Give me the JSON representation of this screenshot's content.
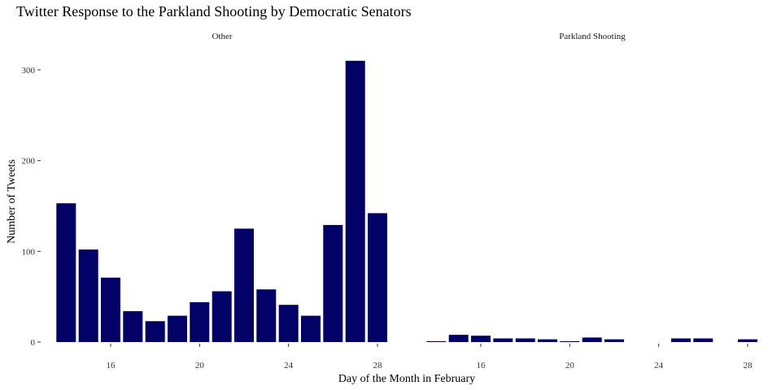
{
  "chart_data": {
    "type": "bar",
    "title": "Twitter Response to the Parkland Shooting by Democratic Senators",
    "xlabel": "Day of the Month in February",
    "ylabel": "Number of Tweets",
    "ylim": [
      0,
      330
    ],
    "yticks": [
      0,
      100,
      200,
      300
    ],
    "xticks": [
      16,
      20,
      24,
      28
    ],
    "bar_color": "#000066",
    "grid": false,
    "legend": "none",
    "facets": [
      {
        "name": "Other",
        "x": [
          14,
          15,
          16,
          17,
          18,
          19,
          20,
          21,
          22,
          23,
          24,
          25,
          26,
          27,
          28
        ],
        "values": [
          153,
          102,
          71,
          34,
          23,
          29,
          44,
          56,
          125,
          58,
          41,
          29,
          129,
          310,
          142
        ]
      },
      {
        "name": "Parkland Shooting",
        "x": [
          14,
          15,
          16,
          17,
          18,
          19,
          20,
          21,
          22,
          25,
          26,
          28
        ],
        "values": [
          1,
          8,
          7,
          4,
          4,
          3,
          1,
          5,
          3,
          4,
          4,
          3
        ]
      }
    ]
  }
}
